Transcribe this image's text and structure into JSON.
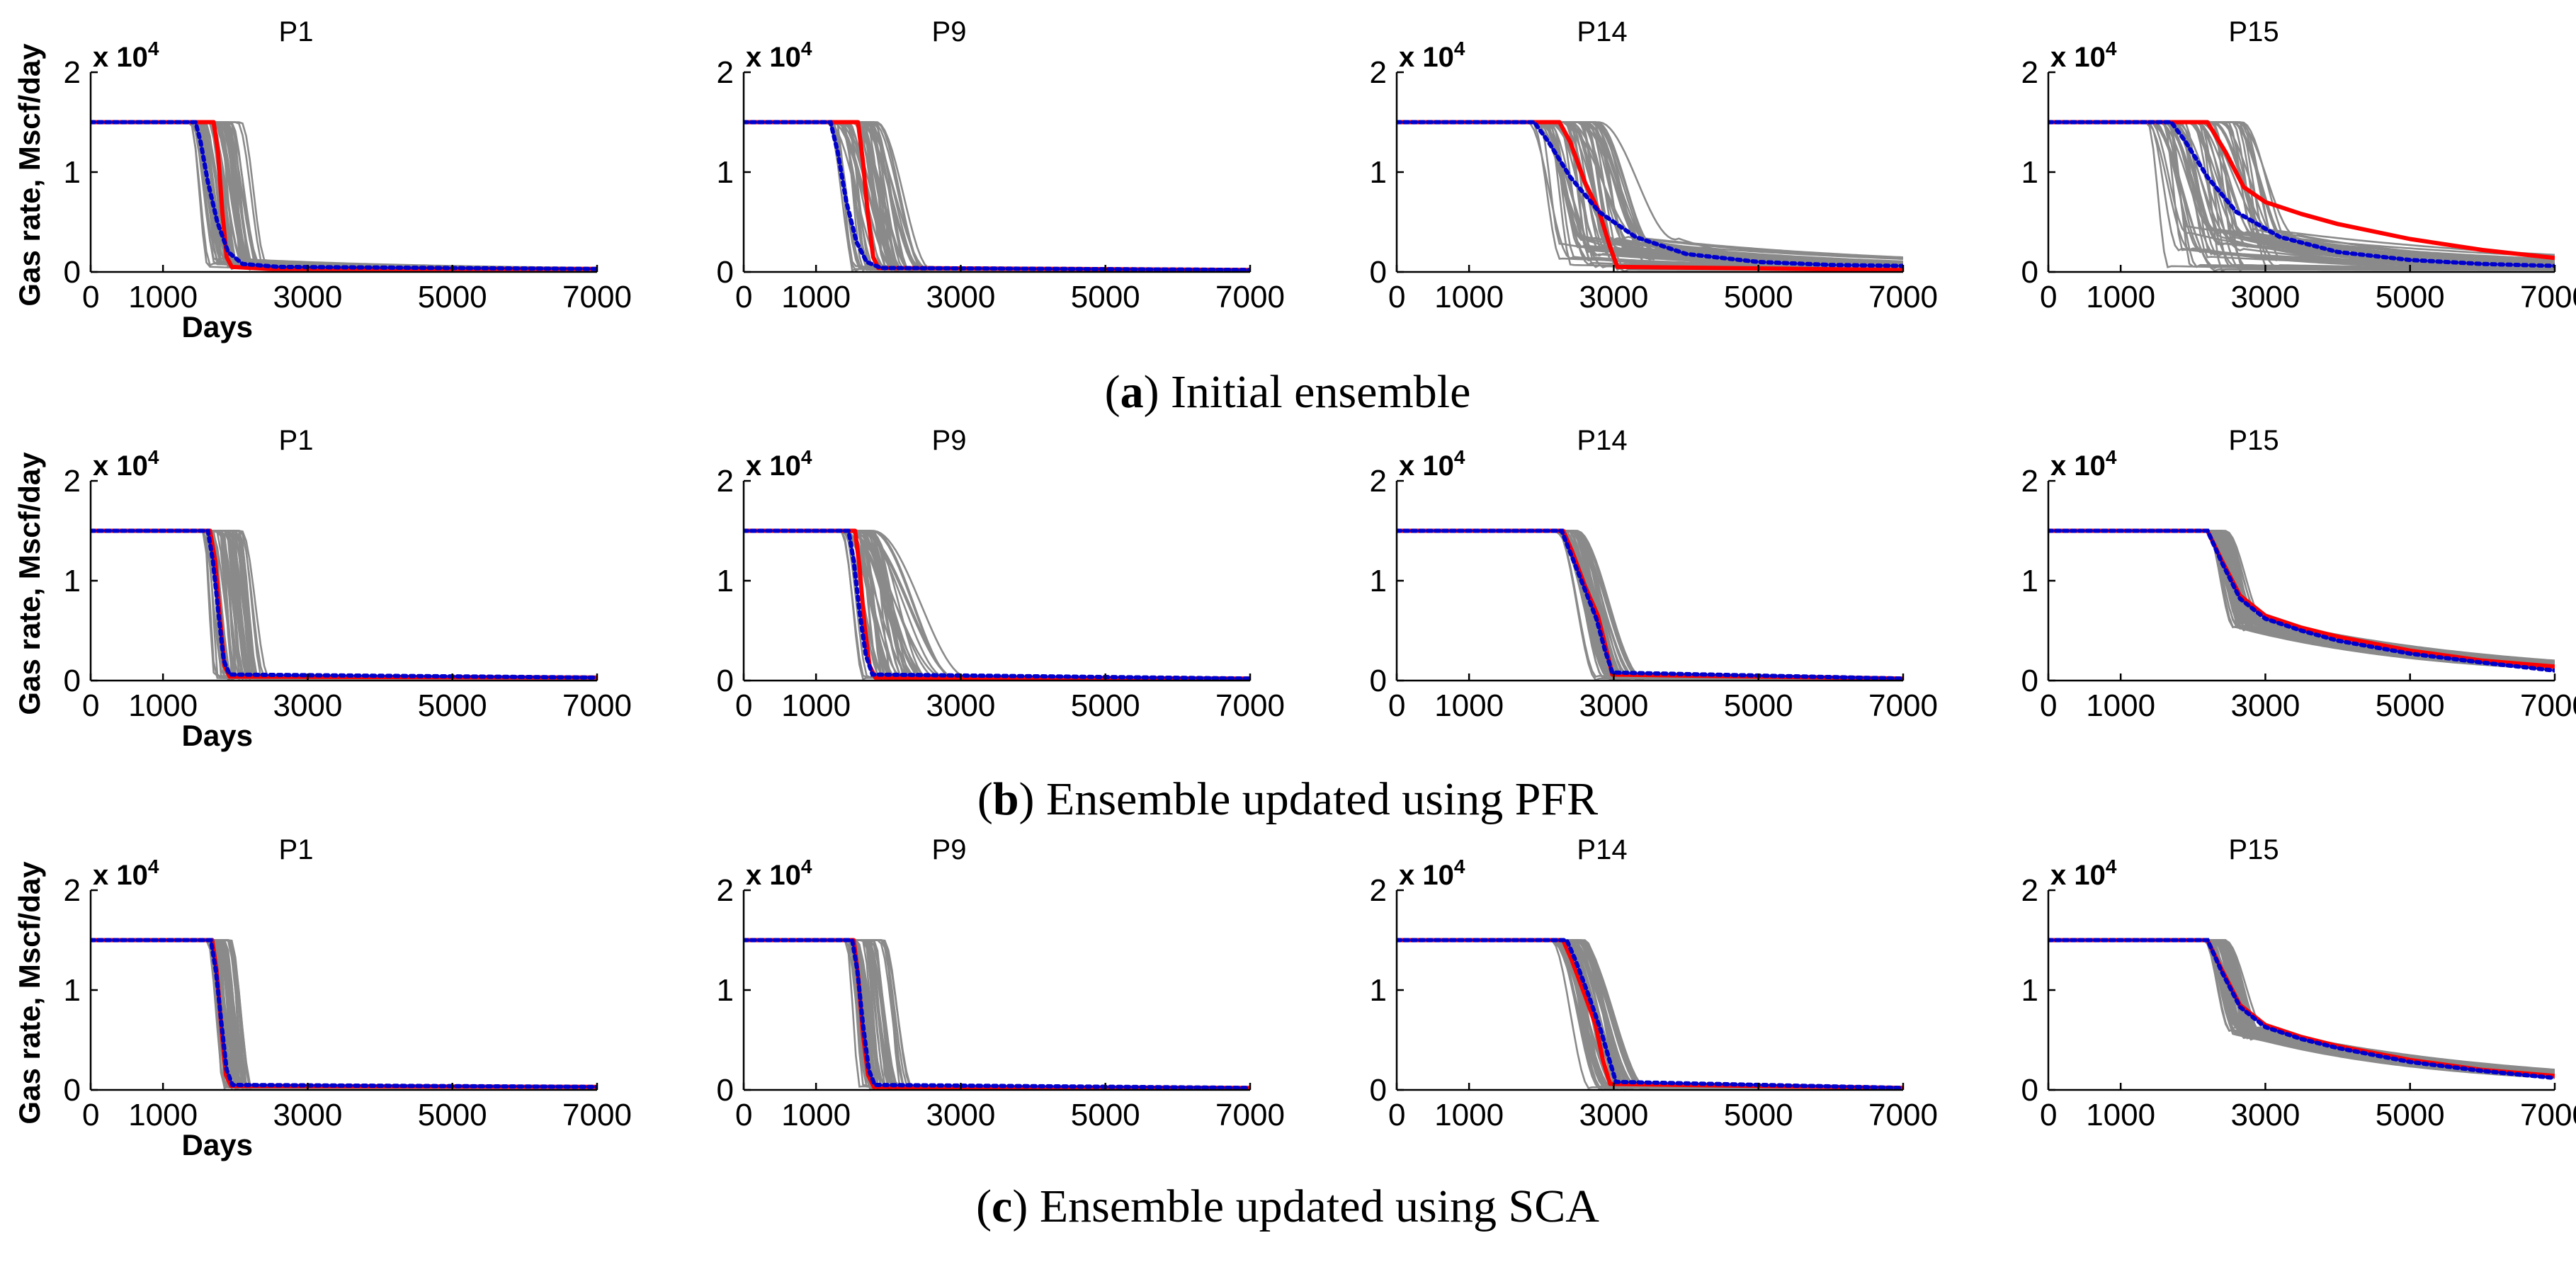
{
  "figure": {
    "rows": [
      {
        "caption_prefix": "(",
        "caption_letter": "a",
        "caption_rest": ") Initial ensemble"
      },
      {
        "caption_prefix": "(",
        "caption_letter": "b",
        "caption_rest": ") Ensemble updated using PFR"
      },
      {
        "caption_prefix": "(",
        "caption_letter": "c",
        "caption_rest": ") Ensemble updated using SCA"
      }
    ],
    "ylabel": "Gas rate, Mscf/day",
    "xlabel": "Days",
    "exponent_label": "x 10",
    "exponent_power": "4"
  },
  "colors": {
    "ensemble": "#8a8a8a",
    "truth": "#ff0000",
    "mean": "#0000cc",
    "axis": "#000000"
  },
  "chart_data": {
    "type": "line",
    "x_ticks": [
      0,
      1000,
      3000,
      5000,
      7000
    ],
    "x_tick_labels": [
      "0",
      "1000",
      "3000",
      "5000",
      "7000"
    ],
    "y_ticks": [
      0,
      1,
      2
    ],
    "y_tick_labels": [
      "0",
      "1",
      "2"
    ],
    "xlim": [
      0,
      7000
    ],
    "ylim": [
      0,
      2
    ],
    "y_units": "x 10^4 Mscf/day",
    "panels": [
      {
        "row": 0,
        "title": "P1",
        "truth": [
          [
            0,
            1.5
          ],
          [
            1700,
            1.5
          ],
          [
            1760,
            1.2
          ],
          [
            1820,
            0.6
          ],
          [
            1880,
            0.15
          ],
          [
            1950,
            0.05
          ],
          [
            2500,
            0.03
          ],
          [
            7000,
            0.03
          ]
        ],
        "mean": [
          [
            0,
            1.5
          ],
          [
            1450,
            1.5
          ],
          [
            1520,
            1.3
          ],
          [
            1620,
            0.9
          ],
          [
            1750,
            0.5
          ],
          [
            1900,
            0.2
          ],
          [
            2100,
            0.08
          ],
          [
            2600,
            0.05
          ],
          [
            7000,
            0.03
          ]
        ],
        "ensemble": {
          "count": 50,
          "drop_start": [
            1300,
            2100
          ],
          "drop_width": [
            220,
            500
          ],
          "tail_level": [
            0.02,
            0.12
          ],
          "tail_decay": [
            800,
            3000
          ]
        }
      },
      {
        "row": 0,
        "title": "P9",
        "truth": [
          [
            0,
            1.5
          ],
          [
            1580,
            1.5
          ],
          [
            1650,
            1.1
          ],
          [
            1720,
            0.55
          ],
          [
            1790,
            0.15
          ],
          [
            1860,
            0.04
          ],
          [
            7000,
            0.02
          ]
        ],
        "mean": [
          [
            0,
            1.5
          ],
          [
            1200,
            1.5
          ],
          [
            1300,
            1.2
          ],
          [
            1420,
            0.7
          ],
          [
            1560,
            0.3
          ],
          [
            1700,
            0.1
          ],
          [
            1900,
            0.04
          ],
          [
            7000,
            0.02
          ]
        ],
        "ensemble": {
          "count": 50,
          "drop_start": [
            1150,
            1850
          ],
          "drop_width": [
            200,
            900
          ],
          "tail_level": [
            0.0,
            0.04
          ],
          "tail_decay": [
            500,
            1000
          ]
        }
      },
      {
        "row": 0,
        "title": "P14",
        "truth": [
          [
            0,
            1.5
          ],
          [
            2250,
            1.5
          ],
          [
            2400,
            1.3
          ],
          [
            2600,
            0.9
          ],
          [
            2800,
            0.6
          ],
          [
            2950,
            0.25
          ],
          [
            3050,
            0.05
          ],
          [
            7000,
            0.02
          ]
        ],
        "mean": [
          [
            0,
            1.5
          ],
          [
            1900,
            1.5
          ],
          [
            2100,
            1.3
          ],
          [
            2400,
            0.95
          ],
          [
            2800,
            0.6
          ],
          [
            3300,
            0.35
          ],
          [
            4000,
            0.18
          ],
          [
            5000,
            0.1
          ],
          [
            6000,
            0.07
          ],
          [
            7000,
            0.06
          ]
        ],
        "ensemble": {
          "count": 55,
          "drop_start": [
            1800,
            2800
          ],
          "drop_width": [
            300,
            1100
          ],
          "tail_level": [
            0.0,
            0.35
          ],
          "tail_decay": [
            1200,
            4000
          ]
        }
      },
      {
        "row": 0,
        "title": "P15",
        "truth": [
          [
            0,
            1.5
          ],
          [
            2200,
            1.5
          ],
          [
            2450,
            1.2
          ],
          [
            2700,
            0.85
          ],
          [
            3000,
            0.7
          ],
          [
            3500,
            0.58
          ],
          [
            4000,
            0.48
          ],
          [
            5000,
            0.33
          ],
          [
            6000,
            0.22
          ],
          [
            7000,
            0.14
          ]
        ],
        "mean": [
          [
            0,
            1.5
          ],
          [
            1700,
            1.5
          ],
          [
            1900,
            1.3
          ],
          [
            2200,
            0.95
          ],
          [
            2600,
            0.6
          ],
          [
            3200,
            0.35
          ],
          [
            4000,
            0.2
          ],
          [
            5000,
            0.12
          ],
          [
            6000,
            0.08
          ],
          [
            7000,
            0.06
          ]
        ],
        "ensemble": {
          "count": 55,
          "drop_start": [
            1350,
            2700
          ],
          "drop_width": [
            250,
            1000
          ],
          "tail_level": [
            0.0,
            0.45
          ],
          "tail_decay": [
            1500,
            4500
          ]
        }
      },
      {
        "row": 1,
        "title": "P1",
        "truth": [
          [
            0,
            1.5
          ],
          [
            1650,
            1.5
          ],
          [
            1720,
            1.2
          ],
          [
            1790,
            0.6
          ],
          [
            1850,
            0.15
          ],
          [
            1920,
            0.04
          ],
          [
            7000,
            0.03
          ]
        ],
        "mean": [
          [
            0,
            1.5
          ],
          [
            1620,
            1.5
          ],
          [
            1690,
            1.2
          ],
          [
            1770,
            0.65
          ],
          [
            1840,
            0.2
          ],
          [
            1920,
            0.06
          ],
          [
            7000,
            0.03
          ]
        ],
        "ensemble": {
          "count": 45,
          "drop_start": [
            1550,
            2100
          ],
          "drop_width": [
            150,
            400
          ],
          "tail_level": [
            0.0,
            0.03
          ],
          "tail_decay": [
            500,
            1000
          ]
        }
      },
      {
        "row": 1,
        "title": "P9",
        "truth": [
          [
            0,
            1.5
          ],
          [
            1540,
            1.5
          ],
          [
            1600,
            1.15
          ],
          [
            1670,
            0.55
          ],
          [
            1740,
            0.15
          ],
          [
            1820,
            0.03
          ],
          [
            7000,
            0.02
          ]
        ],
        "mean": [
          [
            0,
            1.5
          ],
          [
            1450,
            1.5
          ],
          [
            1520,
            1.2
          ],
          [
            1600,
            0.7
          ],
          [
            1690,
            0.25
          ],
          [
            1780,
            0.06
          ],
          [
            7000,
            0.02
          ]
        ],
        "ensemble": {
          "count": 45,
          "drop_start": [
            1300,
            1800
          ],
          "drop_width": [
            200,
            1400
          ],
          "tail_level": [
            0.0,
            0.03
          ],
          "tail_decay": [
            500,
            1000
          ]
        }
      },
      {
        "row": 1,
        "title": "P14",
        "truth": [
          [
            0,
            1.5
          ],
          [
            2300,
            1.5
          ],
          [
            2420,
            1.3
          ],
          [
            2600,
            0.95
          ],
          [
            2780,
            0.65
          ],
          [
            2900,
            0.3
          ],
          [
            2980,
            0.06
          ],
          [
            7000,
            0.02
          ]
        ],
        "mean": [
          [
            0,
            1.5
          ],
          [
            2280,
            1.5
          ],
          [
            2400,
            1.28
          ],
          [
            2580,
            0.95
          ],
          [
            2760,
            0.62
          ],
          [
            2880,
            0.3
          ],
          [
            2980,
            0.08
          ],
          [
            7000,
            0.02
          ]
        ],
        "ensemble": {
          "count": 45,
          "drop_start": [
            2150,
            2500
          ],
          "drop_width": [
            550,
            1000
          ],
          "tail_level": [
            0.0,
            0.03
          ],
          "tail_decay": [
            500,
            1000
          ]
        }
      },
      {
        "row": 1,
        "title": "P15",
        "truth": [
          [
            0,
            1.5
          ],
          [
            2200,
            1.5
          ],
          [
            2400,
            1.2
          ],
          [
            2650,
            0.85
          ],
          [
            3000,
            0.65
          ],
          [
            3500,
            0.53
          ],
          [
            4000,
            0.44
          ],
          [
            5000,
            0.3
          ],
          [
            6000,
            0.2
          ],
          [
            7000,
            0.14
          ]
        ],
        "mean": [
          [
            0,
            1.5
          ],
          [
            2200,
            1.5
          ],
          [
            2400,
            1.18
          ],
          [
            2650,
            0.82
          ],
          [
            3000,
            0.62
          ],
          [
            3500,
            0.5
          ],
          [
            4000,
            0.4
          ],
          [
            5000,
            0.27
          ],
          [
            6000,
            0.18
          ],
          [
            7000,
            0.1
          ]
        ],
        "ensemble": {
          "count": 50,
          "drop_start": [
            2150,
            2450
          ],
          "drop_width": [
            350,
            600
          ],
          "tail_level": [
            0.5,
            0.62
          ],
          "tail_decay": [
            2500,
            3500
          ]
        }
      },
      {
        "row": 2,
        "title": "P1",
        "truth": [
          [
            0,
            1.5
          ],
          [
            1680,
            1.5
          ],
          [
            1740,
            1.2
          ],
          [
            1810,
            0.6
          ],
          [
            1870,
            0.15
          ],
          [
            1940,
            0.04
          ],
          [
            7000,
            0.03
          ]
        ],
        "mean": [
          [
            0,
            1.5
          ],
          [
            1660,
            1.5
          ],
          [
            1730,
            1.2
          ],
          [
            1810,
            0.65
          ],
          [
            1880,
            0.2
          ],
          [
            1960,
            0.05
          ],
          [
            7000,
            0.03
          ]
        ],
        "ensemble": {
          "count": 45,
          "drop_start": [
            1600,
            1950
          ],
          "drop_width": [
            150,
            350
          ],
          "tail_level": [
            0.0,
            0.03
          ],
          "tail_decay": [
            500,
            1000
          ]
        }
      },
      {
        "row": 2,
        "title": "P9",
        "truth": [
          [
            0,
            1.5
          ],
          [
            1520,
            1.5
          ],
          [
            1580,
            1.15
          ],
          [
            1650,
            0.55
          ],
          [
            1720,
            0.15
          ],
          [
            1800,
            0.03
          ],
          [
            7000,
            0.02
          ]
        ],
        "mean": [
          [
            0,
            1.5
          ],
          [
            1500,
            1.5
          ],
          [
            1570,
            1.2
          ],
          [
            1650,
            0.65
          ],
          [
            1730,
            0.2
          ],
          [
            1810,
            0.05
          ],
          [
            7000,
            0.02
          ]
        ],
        "ensemble": {
          "count": 45,
          "drop_start": [
            1400,
            1950
          ],
          "drop_width": [
            180,
            450
          ],
          "tail_level": [
            0.0,
            0.03
          ],
          "tail_decay": [
            500,
            1000
          ]
        }
      },
      {
        "row": 2,
        "title": "P14",
        "truth": [
          [
            0,
            1.5
          ],
          [
            2300,
            1.5
          ],
          [
            2420,
            1.3
          ],
          [
            2600,
            0.95
          ],
          [
            2750,
            0.65
          ],
          [
            2850,
            0.3
          ],
          [
            2950,
            0.06
          ],
          [
            7000,
            0.02
          ]
        ],
        "mean": [
          [
            0,
            1.5
          ],
          [
            2350,
            1.5
          ],
          [
            2470,
            1.3
          ],
          [
            2650,
            0.95
          ],
          [
            2820,
            0.6
          ],
          [
            2940,
            0.3
          ],
          [
            3030,
            0.08
          ],
          [
            7000,
            0.02
          ]
        ],
        "ensemble": {
          "count": 50,
          "drop_start": [
            2100,
            2600
          ],
          "drop_width": [
            550,
            1000
          ],
          "tail_level": [
            0.0,
            0.03
          ],
          "tail_decay": [
            500,
            1000
          ]
        }
      },
      {
        "row": 2,
        "title": "P15",
        "truth": [
          [
            0,
            1.5
          ],
          [
            2200,
            1.5
          ],
          [
            2400,
            1.2
          ],
          [
            2650,
            0.85
          ],
          [
            3000,
            0.65
          ],
          [
            3500,
            0.53
          ],
          [
            4000,
            0.44
          ],
          [
            5000,
            0.3
          ],
          [
            6000,
            0.2
          ],
          [
            7000,
            0.14
          ]
        ],
        "mean": [
          [
            0,
            1.5
          ],
          [
            2200,
            1.5
          ],
          [
            2400,
            1.18
          ],
          [
            2650,
            0.83
          ],
          [
            3000,
            0.63
          ],
          [
            3500,
            0.51
          ],
          [
            4000,
            0.42
          ],
          [
            5000,
            0.28
          ],
          [
            6000,
            0.19
          ],
          [
            7000,
            0.12
          ]
        ],
        "ensemble": {
          "count": 50,
          "drop_start": [
            2150,
            2450
          ],
          "drop_width": [
            350,
            600
          ],
          "tail_level": [
            0.5,
            0.62
          ],
          "tail_decay": [
            2500,
            3500
          ]
        }
      }
    ]
  }
}
